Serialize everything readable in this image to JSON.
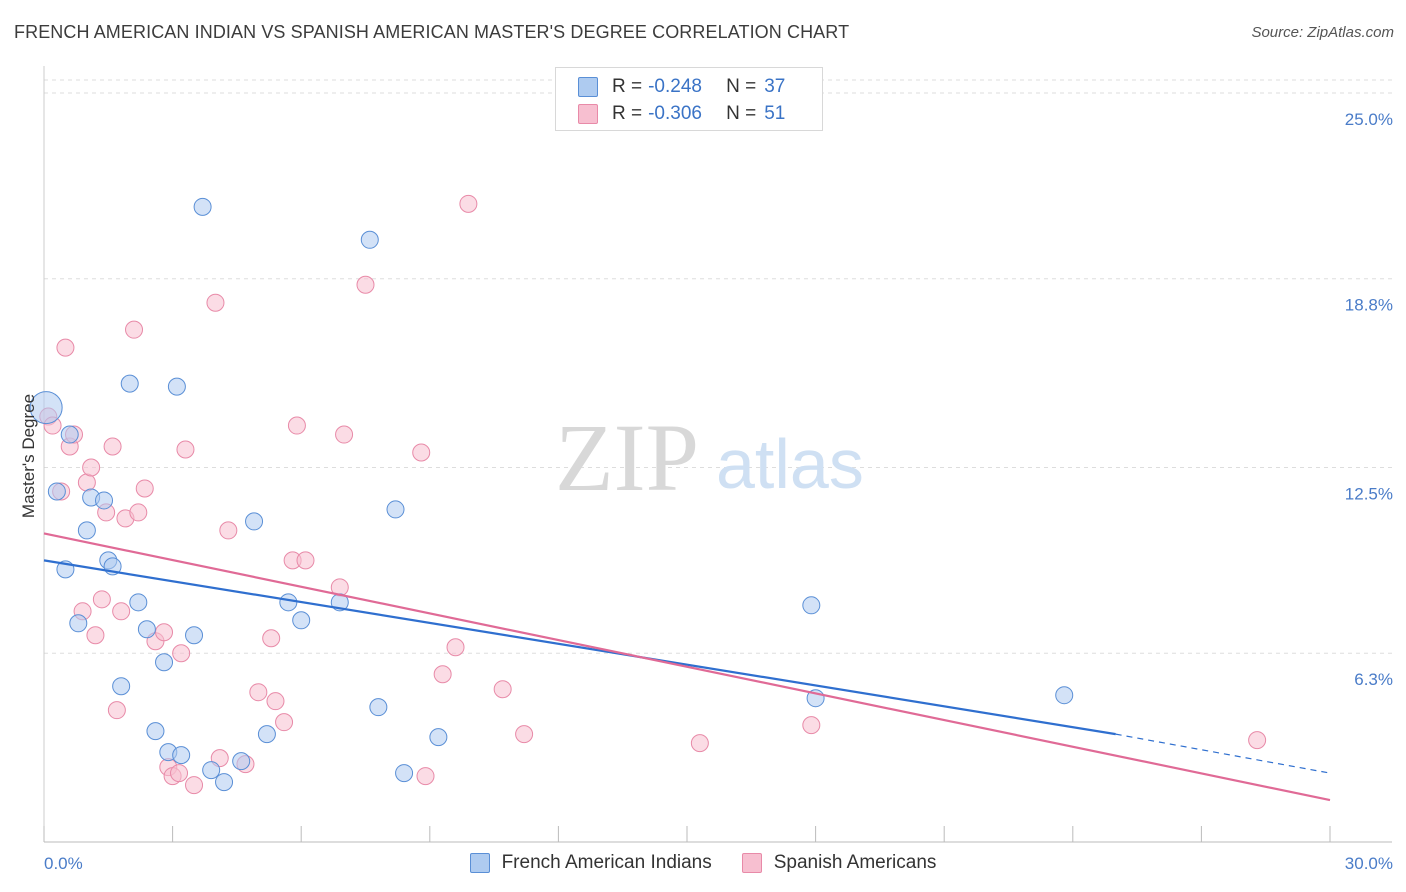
{
  "title": "FRENCH AMERICAN INDIAN VS SPANISH AMERICAN MASTER'S DEGREE CORRELATION CHART",
  "source": "Source: ZipAtlas.com",
  "watermark": {
    "zip": "ZIP",
    "atlas": "atlas"
  },
  "legend": {
    "rows": [
      {
        "r_label": "R =",
        "r_value": "-0.248",
        "n_label": "N =",
        "n_value": "37"
      },
      {
        "r_label": "R =",
        "r_value": "-0.306",
        "n_label": "N =",
        "n_value": "51"
      }
    ]
  },
  "bottom_legend": [
    "French American Indians",
    "Spanish Americans"
  ],
  "colors": {
    "blue_fill": "#aecbf0",
    "blue_stroke": "#5a8fd6",
    "blue_line": "#2f6fcf",
    "pink_fill": "#f7bfd0",
    "pink_stroke": "#e88aa8",
    "pink_line": "#e06a96",
    "tick_label": "#4a7cc8",
    "grid": "#dddddd"
  },
  "chart_data": {
    "type": "scatter",
    "title": "FRENCH AMERICAN INDIAN VS SPANISH AMERICAN MASTER'S DEGREE CORRELATION CHART",
    "xlabel": "",
    "ylabel": "Master's Degree",
    "xlim": [
      0,
      30
    ],
    "ylim": [
      0,
      25.5
    ],
    "x_tick_labels": [
      "0.0%",
      "30.0%"
    ],
    "y_ticks": [
      6.3,
      12.5,
      18.8,
      25.0
    ],
    "y_tick_labels": [
      "6.3%",
      "12.5%",
      "18.8%",
      "25.0%"
    ],
    "grid": true,
    "series": [
      {
        "name": "French American Indians",
        "color": "blue",
        "trend": {
          "x0": 0,
          "y0": 9.4,
          "x1": 25,
          "y1": 3.6,
          "dash_to": 30,
          "dash_y": 2.3
        },
        "points": [
          [
            0.05,
            14.5
          ],
          [
            0.3,
            11.7
          ],
          [
            0.6,
            13.6
          ],
          [
            0.5,
            9.1
          ],
          [
            0.8,
            7.3
          ],
          [
            1.0,
            10.4
          ],
          [
            1.1,
            11.5
          ],
          [
            1.4,
            11.4
          ],
          [
            1.5,
            9.4
          ],
          [
            1.6,
            9.2
          ],
          [
            1.8,
            5.2
          ],
          [
            2.0,
            15.3
          ],
          [
            2.2,
            8.0
          ],
          [
            2.4,
            7.1
          ],
          [
            2.6,
            3.7
          ],
          [
            2.8,
            6.0
          ],
          [
            2.9,
            3.0
          ],
          [
            3.1,
            15.2
          ],
          [
            3.2,
            2.9
          ],
          [
            3.5,
            6.9
          ],
          [
            3.7,
            21.2
          ],
          [
            3.9,
            2.4
          ],
          [
            4.2,
            2.0
          ],
          [
            4.6,
            2.7
          ],
          [
            4.9,
            10.7
          ],
          [
            5.2,
            3.6
          ],
          [
            5.7,
            8.0
          ],
          [
            6.0,
            7.4
          ],
          [
            6.9,
            8.0
          ],
          [
            7.6,
            20.1
          ],
          [
            7.8,
            4.5
          ],
          [
            8.2,
            11.1
          ],
          [
            8.4,
            2.3
          ],
          [
            9.2,
            3.5
          ],
          [
            17.9,
            7.9
          ],
          [
            18.0,
            4.8
          ],
          [
            23.8,
            4.9
          ]
        ]
      },
      {
        "name": "Spanish Americans",
        "color": "pink",
        "trend": {
          "x0": 0,
          "y0": 10.3,
          "x1": 30,
          "y1": 1.4
        },
        "points": [
          [
            0.1,
            14.2
          ],
          [
            0.2,
            13.9
          ],
          [
            0.4,
            11.7
          ],
          [
            0.5,
            16.5
          ],
          [
            0.6,
            13.2
          ],
          [
            0.7,
            13.6
          ],
          [
            0.9,
            7.7
          ],
          [
            1.0,
            12.0
          ],
          [
            1.1,
            12.5
          ],
          [
            1.2,
            6.9
          ],
          [
            1.35,
            8.1
          ],
          [
            1.45,
            11.0
          ],
          [
            1.6,
            13.2
          ],
          [
            1.7,
            4.4
          ],
          [
            1.8,
            7.7
          ],
          [
            1.9,
            10.8
          ],
          [
            2.1,
            17.1
          ],
          [
            2.2,
            11.0
          ],
          [
            2.35,
            11.8
          ],
          [
            2.6,
            6.7
          ],
          [
            2.8,
            7.0
          ],
          [
            2.9,
            2.5
          ],
          [
            3.0,
            2.2
          ],
          [
            3.15,
            2.3
          ],
          [
            3.2,
            6.3
          ],
          [
            3.3,
            13.1
          ],
          [
            3.5,
            1.9
          ],
          [
            4.0,
            18.0
          ],
          [
            4.1,
            2.8
          ],
          [
            4.3,
            10.4
          ],
          [
            4.7,
            2.6
          ],
          [
            5.0,
            5.0
          ],
          [
            5.3,
            6.8
          ],
          [
            5.4,
            4.7
          ],
          [
            5.6,
            4.0
          ],
          [
            5.8,
            9.4
          ],
          [
            5.9,
            13.9
          ],
          [
            6.1,
            9.4
          ],
          [
            6.9,
            8.5
          ],
          [
            7.0,
            13.6
          ],
          [
            7.5,
            18.6
          ],
          [
            8.8,
            13.0
          ],
          [
            8.9,
            2.2
          ],
          [
            9.3,
            5.6
          ],
          [
            9.6,
            6.5
          ],
          [
            9.9,
            21.3
          ],
          [
            10.7,
            5.1
          ],
          [
            11.2,
            3.6
          ],
          [
            15.3,
            3.3
          ],
          [
            17.9,
            3.9
          ],
          [
            28.3,
            3.4
          ]
        ]
      }
    ]
  }
}
